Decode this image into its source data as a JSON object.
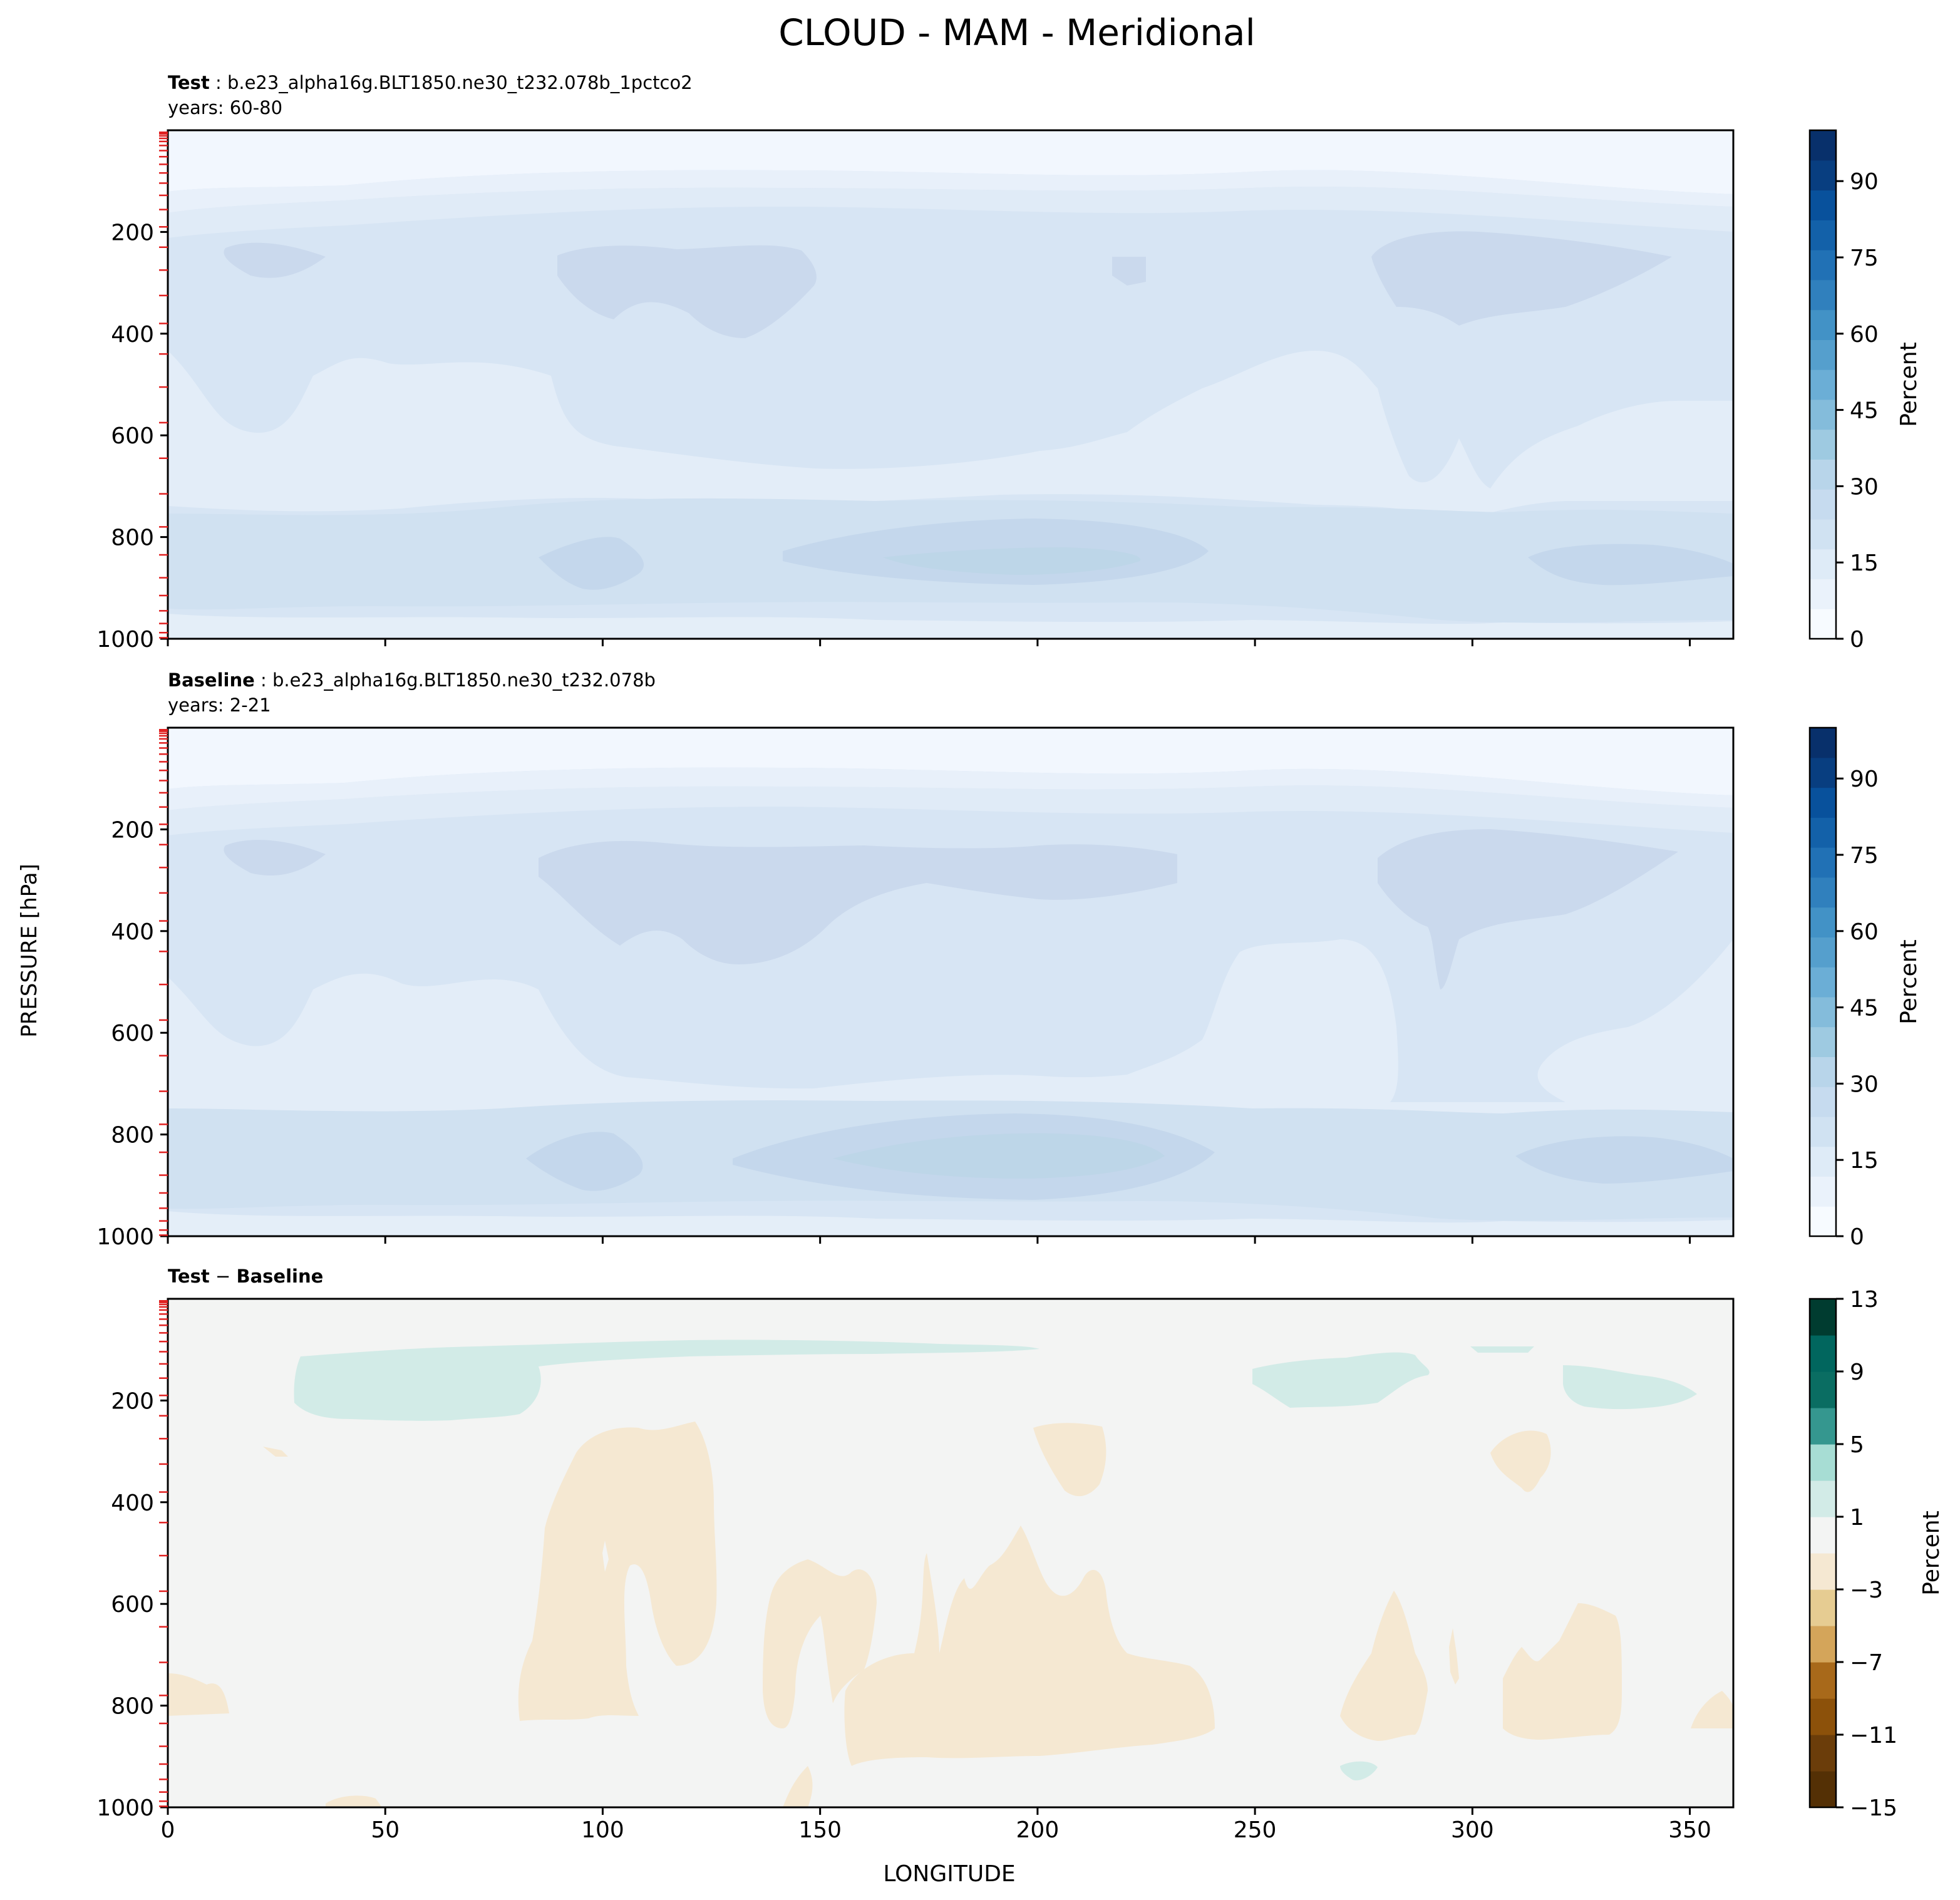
{
  "title": "CLOUD - MAM - Meridional",
  "ylabel": "PRESSURE [hPa]",
  "xlabel": "LONGITUDE",
  "colors": {
    "blues": [
      "#f7fbff",
      "#eaf2fb",
      "#deebf7",
      "#d0e2f2",
      "#c6dbef",
      "#b8d5ea",
      "#9ecae1",
      "#84bcdb",
      "#6baed6",
      "#559fcd",
      "#4292c6",
      "#3080bd",
      "#2171b5",
      "#1361a9",
      "#08519c",
      "#083e80",
      "#08306b"
    ],
    "brbg": [
      "#543005",
      "#8c510a",
      "#bf812d",
      "#dfc27d",
      "#f6e8c3",
      "#f5f5f5",
      "#c7eae5",
      "#80cdc1",
      "#35978f",
      "#01665e",
      "#003c30"
    ],
    "neg_fill": "#f5e8d2",
    "pos_fill": "#d2ebe7",
    "diff_bg": "#f3f4f3",
    "tick_red": "#e02020"
  },
  "panels": [
    {
      "label_bold": "Test",
      "label_rest": " : b.e23_alpha16g.BLT1850.ne30_t232.078b_1pctco2",
      "years": "years: 60-80"
    },
    {
      "label_bold": "Baseline",
      "label_rest": " : b.e23_alpha16g.BLT1850.ne30_t232.078b",
      "years": "years: 2-21"
    },
    {
      "label_bold": "Test",
      "label_mid": " − ",
      "label_bold2": "Baseline",
      "label_rest": "",
      "years": ""
    }
  ],
  "colorbars": [
    {
      "label": "Percent",
      "ticks": [
        "0",
        "15",
        "30",
        "45",
        "60",
        "75",
        "90"
      ],
      "range": [
        0,
        100
      ]
    },
    {
      "label": "Percent",
      "ticks": [
        "0",
        "15",
        "30",
        "45",
        "60",
        "75",
        "90"
      ],
      "range": [
        0,
        100
      ]
    },
    {
      "label": "Percent",
      "ticks": [
        "−15",
        "−11",
        "−7",
        "−3",
        "1",
        "5",
        "9",
        "13"
      ],
      "range": [
        -15,
        13
      ]
    }
  ],
  "chart_data": [
    {
      "type": "heatmap",
      "title": "Test : b.e23_alpha16g.BLT1850.ne30_t232.078b_1pctco2",
      "subtitle": "years: 60-80",
      "xlabel": "LONGITUDE",
      "ylabel": "PRESSURE [hPa]",
      "xlim": [
        0,
        360
      ],
      "ylim": [
        1000,
        0
      ],
      "xticks": [
        "0",
        "50",
        "100",
        "150",
        "200",
        "250",
        "300",
        "350"
      ],
      "yticks": [
        "200",
        "400",
        "600",
        "800",
        "1000"
      ],
      "colorbar": {
        "label": "Percent",
        "ticks": [
          0,
          15,
          30,
          45,
          60,
          75,
          90
        ],
        "range": [
          0,
          100
        ]
      },
      "features": [
        {
          "name": "upper-troposphere cloud",
          "pressure_range": [
            200,
            400
          ],
          "approx_value": 15
        },
        {
          "name": "low cloud layer",
          "pressure_range": [
            750,
            950
          ],
          "approx_value": 20,
          "max_near_longitude": 195
        }
      ]
    },
    {
      "type": "heatmap",
      "title": "Baseline : b.e23_alpha16g.BLT1850.ne30_t232.078b",
      "subtitle": "years: 2-21",
      "xlabel": "LONGITUDE",
      "ylabel": "PRESSURE [hPa]",
      "xlim": [
        0,
        360
      ],
      "ylim": [
        1000,
        0
      ],
      "xticks": [
        "0",
        "50",
        "100",
        "150",
        "200",
        "250",
        "300",
        "350"
      ],
      "yticks": [
        "200",
        "400",
        "600",
        "800",
        "1000"
      ],
      "colorbar": {
        "label": "Percent",
        "ticks": [
          0,
          15,
          30,
          45,
          60,
          75,
          90
        ],
        "range": [
          0,
          100
        ]
      },
      "features": [
        {
          "name": "upper-troposphere cloud",
          "pressure_range": [
            200,
            400
          ],
          "approx_value": 15
        },
        {
          "name": "low cloud layer",
          "pressure_range": [
            750,
            950
          ],
          "approx_value": 20,
          "max_near_longitude": 195
        }
      ]
    },
    {
      "type": "heatmap",
      "title": "Test − Baseline",
      "xlabel": "LONGITUDE",
      "ylabel": "PRESSURE [hPa]",
      "xlim": [
        0,
        360
      ],
      "ylim": [
        1000,
        0
      ],
      "xticks": [
        "0",
        "50",
        "100",
        "150",
        "200",
        "250",
        "300",
        "350"
      ],
      "yticks": [
        "200",
        "400",
        "600",
        "800",
        "1000"
      ],
      "colorbar": {
        "label": "Percent",
        "ticks": [
          -15,
          -11,
          -7,
          -3,
          1,
          5,
          9,
          13
        ],
        "range": [
          -15,
          13
        ]
      },
      "features": [
        {
          "name": "positive difference (1 to 5)",
          "lon_range": [
            28,
            200
          ],
          "pressure_range": [
            90,
            230
          ]
        },
        {
          "name": "positive difference (1 to 5)",
          "lon_range": [
            250,
            290
          ],
          "pressure_range": [
            110,
            230
          ]
        },
        {
          "name": "positive difference (1 to 5)",
          "lon_range": [
            320,
            352
          ],
          "pressure_range": [
            130,
            230
          ]
        },
        {
          "name": "negative difference (-3 to 1)",
          "lon_range": [
            80,
            125
          ],
          "pressure_range": [
            250,
            860
          ]
        },
        {
          "name": "negative difference (-3 to 1)",
          "lon_range": [
            137,
            240
          ],
          "pressure_range": [
            440,
            910
          ]
        },
        {
          "name": "negative difference (-3 to 1)",
          "lon_range": [
            268,
            290
          ],
          "pressure_range": [
            580,
            880
          ]
        },
        {
          "name": "negative difference (-3 to 1)",
          "lon_range": [
            305,
            333
          ],
          "pressure_range": [
            640,
            860
          ]
        }
      ]
    }
  ]
}
